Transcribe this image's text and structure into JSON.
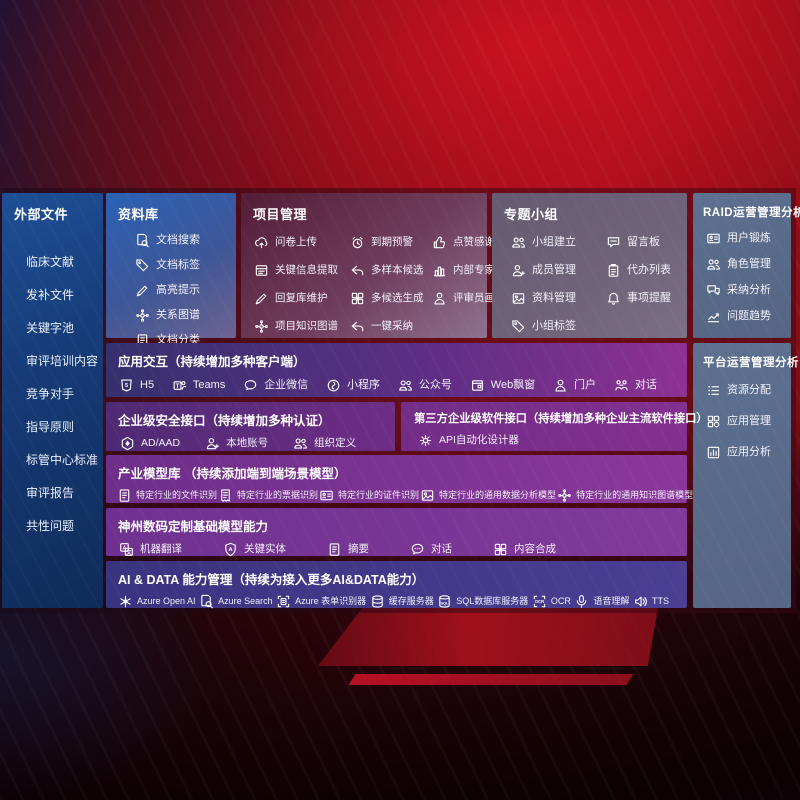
{
  "colors": {
    "background_red": "#b01120",
    "sidebar_blue": "#163b77",
    "library_blue": "#2a61b5",
    "project_maroon": "#541d36",
    "topic_mauve": "#6f6479",
    "ops_slate": "#5d7090",
    "interact_indigo": "#35306e",
    "module_purple": "#7c3190",
    "ai_indigo": "#3a3380",
    "text": "#ffffff"
  },
  "sidebar": {
    "title": "外部文件",
    "items": [
      {
        "label": "临床文献"
      },
      {
        "label": "发补文件"
      },
      {
        "label": "关键字池"
      },
      {
        "label": "审评培训内容"
      },
      {
        "label": "竞争对手"
      },
      {
        "label": "指导原则"
      },
      {
        "label": "标管中心标准"
      },
      {
        "label": "审评报告"
      },
      {
        "label": "共性问题"
      }
    ]
  },
  "panels": {
    "library": {
      "title": "资料库",
      "items": [
        {
          "icon": "doc-search",
          "label": "文档搜索"
        },
        {
          "icon": "tag",
          "label": "文档标签"
        },
        {
          "icon": "pen",
          "label": "高亮提示"
        },
        {
          "icon": "network",
          "label": "关系图谱"
        },
        {
          "icon": "doc",
          "label": "文档分类"
        }
      ]
    },
    "project": {
      "title": "项目管理",
      "items": [
        {
          "icon": "cloud-upload",
          "label": "问卷上传"
        },
        {
          "icon": "alarm",
          "label": "到期预警"
        },
        {
          "icon": "thumb-up",
          "label": "点赞感谢"
        },
        {
          "icon": "doc-extract",
          "label": "关键信息提取"
        },
        {
          "icon": "reply",
          "label": "多样本候选"
        },
        {
          "icon": "rank",
          "label": "内部专家排名"
        },
        {
          "icon": "pen",
          "label": "回复库维护"
        },
        {
          "icon": "compose",
          "label": "多候选生成"
        },
        {
          "icon": "person",
          "label": "评审员画像"
        },
        {
          "icon": "network",
          "label": "项目知识图谱"
        },
        {
          "icon": "reply",
          "label": "一键采纳"
        }
      ]
    },
    "topic": {
      "title": "专题小组",
      "items": [
        {
          "icon": "people",
          "label": "小组建立"
        },
        {
          "icon": "chat-bbs",
          "label": "留言板"
        },
        {
          "icon": "person-plus",
          "label": "成员管理"
        },
        {
          "icon": "clipboard",
          "label": "代办列表"
        },
        {
          "icon": "image",
          "label": "资料管理"
        },
        {
          "icon": "bell",
          "label": "事项提醒"
        },
        {
          "icon": "tag",
          "label": "小组标签"
        }
      ]
    },
    "raid": {
      "title": "RAID运营管理分析",
      "items": [
        {
          "icon": "id-card",
          "label": "用户锻炼"
        },
        {
          "icon": "people",
          "label": "角色管理"
        },
        {
          "icon": "chat-qa",
          "label": "采纳分析"
        },
        {
          "icon": "trend",
          "label": "问题趋势"
        }
      ]
    },
    "platform": {
      "title": "平台运营管理分析",
      "items": [
        {
          "icon": "list",
          "label": "资源分配"
        },
        {
          "icon": "apps",
          "label": "应用管理"
        },
        {
          "icon": "chart-box",
          "label": "应用分析"
        }
      ]
    },
    "interact": {
      "title": "应用交互（持续增加多种客户端）",
      "items": [
        {
          "icon": "h5",
          "label": "H5"
        },
        {
          "icon": "teams",
          "label": "Teams"
        },
        {
          "icon": "wecom",
          "label": "企业微信"
        },
        {
          "icon": "miniprogram",
          "label": "小程序"
        },
        {
          "icon": "people",
          "label": "公众号"
        },
        {
          "icon": "window",
          "label": "Web飘窗"
        },
        {
          "icon": "person",
          "label": "门户"
        },
        {
          "icon": "chat-duo",
          "label": "对话"
        }
      ]
    },
    "security": {
      "title": "企业级安全接口（持续增加多种认证）",
      "items": [
        {
          "icon": "ad",
          "label": "AD/AAD"
        },
        {
          "icon": "person-plus",
          "label": "本地账号"
        },
        {
          "icon": "people",
          "label": "组织定义"
        }
      ]
    },
    "thirdparty": {
      "title": "第三方企业级软件接口（持续增加多种企业主流软件接口）",
      "items": [
        {
          "icon": "gear",
          "label": "API自动化设计器"
        }
      ]
    },
    "industry": {
      "title": "产业模型库 （持续添加端到端场景模型）",
      "items": [
        {
          "icon": "doc",
          "label": "特定行业的文件识别"
        },
        {
          "icon": "receipt",
          "label": "特定行业的票据识别"
        },
        {
          "icon": "id-card",
          "label": "特定行业的证件识别"
        },
        {
          "icon": "image",
          "label": "特定行业的通用数据分析模型"
        },
        {
          "icon": "network",
          "label": "特定行业的通用知识图谱模型"
        }
      ]
    },
    "base_models": {
      "title": "神州数码定制基础模型能力",
      "items": [
        {
          "icon": "translate",
          "label": "机器翻译"
        },
        {
          "icon": "shield-a",
          "label": "关键实体"
        },
        {
          "icon": "doc",
          "label": "摘要"
        },
        {
          "icon": "chat-dots",
          "label": "对话"
        },
        {
          "icon": "compose",
          "label": "内容合成"
        }
      ]
    },
    "ai_data": {
      "title": "AI & DATA 能力管理（持续为接入更多AI&DATA能力）",
      "items": [
        {
          "icon": "openai",
          "label": "Azure Open AI"
        },
        {
          "icon": "doc-search",
          "label": "Azure Search"
        },
        {
          "icon": "form-recognizer",
          "label": "Azure 表单识别器"
        },
        {
          "icon": "db",
          "label": "缓存服务器"
        },
        {
          "icon": "db-sql",
          "label": "SQL数据库服务器"
        },
        {
          "icon": "ocr",
          "label": "OCR"
        },
        {
          "icon": "speech",
          "label": "语音理解"
        },
        {
          "icon": "tts",
          "label": "TTS"
        }
      ]
    }
  }
}
